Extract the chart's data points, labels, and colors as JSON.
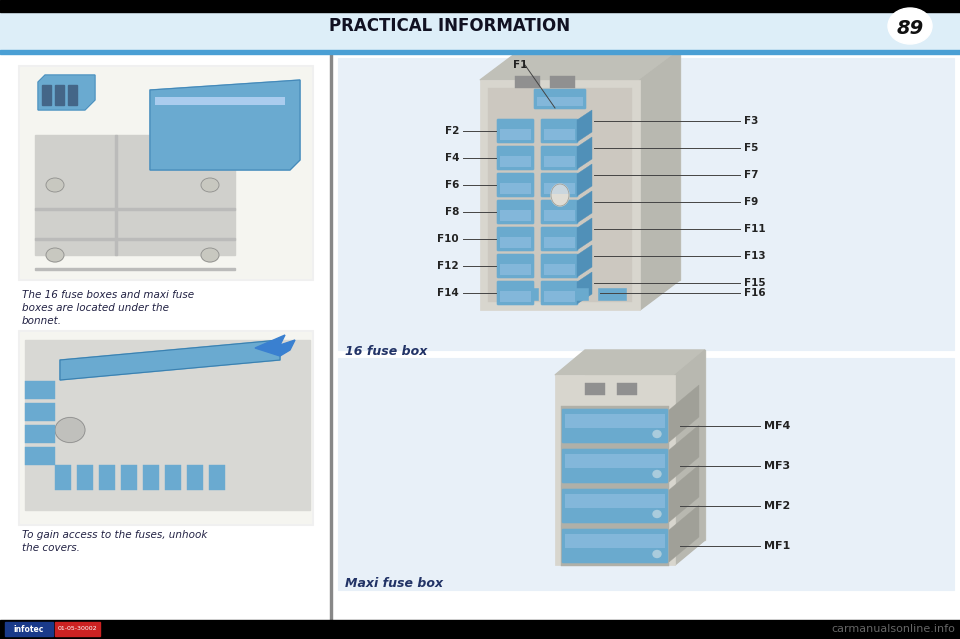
{
  "title": "PRACTICAL INFORMATION",
  "page_number": "89",
  "bg_light_blue": "#ddeef8",
  "bg_white": "#ffffff",
  "panel_bg": "#e8f0f8",
  "box_bg": "#e0e8f0",
  "fuse_box_body": "#d0cfc8",
  "fuse_box_top": "#c0bfb8",
  "fuse_box_side": "#b8b7b0",
  "fuse_blue_light": "#8ab8d8",
  "fuse_blue": "#6aaace",
  "fuse_blue_dark": "#5090b8",
  "fuse_gray": "#a8a8a8",
  "fuse_gray_dark": "#888888",
  "label_color": "#222222",
  "line_color": "#444444",
  "caption_color": "#223366",
  "text_color": "#222244",
  "divider_blue": "#4a9fd4",
  "header_title_color": "#111122",
  "footer_bg": "#000000",
  "infotec_blue": "#1a3a8a",
  "infotec_red": "#cc2222",
  "watermark_color": "#666666",
  "left_text1_lines": [
    "The 16 fuse boxes and maxi fuse",
    "boxes are located under the",
    "bonnet."
  ],
  "left_text2_lines": [
    "To gain access to the fuses, unhook",
    "the covers."
  ],
  "caption1": "16 fuse box",
  "caption2": "Maxi fuse box",
  "fuse_labels_left": [
    "F2",
    "F4",
    "F6",
    "F8",
    "F10",
    "F12",
    "F14"
  ],
  "fuse_labels_right": [
    "F3",
    "F5",
    "F7",
    "F9",
    "F11",
    "F13",
    "F15"
  ],
  "fuse_label_f1": "F1",
  "fuse_label_f16": "F16",
  "maxi_labels": [
    "MF4",
    "MF3",
    "MF2",
    "MF1"
  ],
  "watermark": "carmanualsonline.info"
}
